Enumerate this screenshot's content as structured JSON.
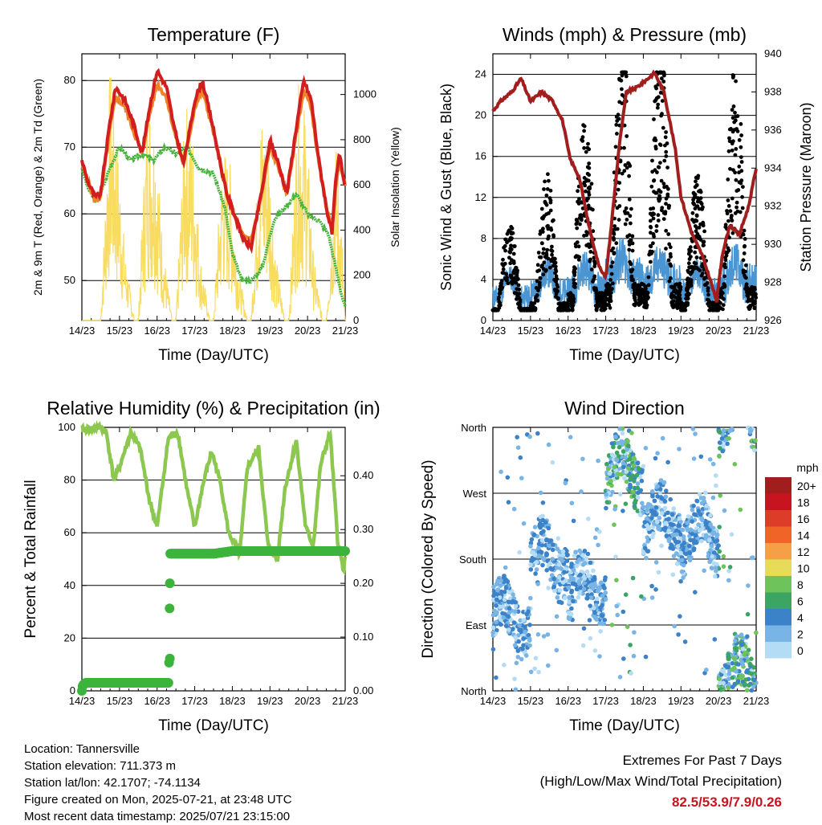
{
  "colors": {
    "temp_red": "#d21e1e",
    "temp_orange": "#f08228",
    "dewpoint_green": "#46b43c",
    "solar_yellow": "#f8dc60",
    "wind_blue": "#4b96d2",
    "gust_black": "#000000",
    "pressure_maroon": "#a01e1e",
    "rh_green": "#8cc850",
    "precip_green": "#3cb43c"
  },
  "shared_time_ticks": [
    "14/23",
    "15/23",
    "16/23",
    "17/23",
    "18/23",
    "19/23",
    "20/23",
    "21/23"
  ],
  "chart_data": [
    {
      "id": "temperature",
      "type": "line",
      "title": "Temperature (F)",
      "xlabel": "Time (Day/UTC)",
      "ylabel": "2m & 9m T (Red, Orange) & 2m Td (Green)",
      "ylabel_right": "Solar Insolation (Yellow)",
      "x_ticks": [
        "14/23",
        "15/23",
        "16/23",
        "17/23",
        "18/23",
        "19/23",
        "20/23",
        "21/23"
      ],
      "ylim": [
        44,
        84
      ],
      "yticks": [
        50,
        60,
        70,
        80
      ],
      "ylim_right": [
        0,
        1180
      ],
      "yticks_right": [
        0,
        200,
        400,
        600,
        800,
        1000
      ],
      "series": [
        {
          "name": "2m T",
          "color": "#d21e1e",
          "x": [
            0,
            0.15,
            0.35,
            0.5,
            0.75,
            0.9,
            1.15,
            1.4,
            1.6,
            1.8,
            2.0,
            2.25,
            2.45,
            2.7,
            2.85,
            3.0,
            3.2,
            3.45,
            3.7,
            3.85,
            4.05,
            4.3,
            4.5,
            4.8,
            5.0,
            5.2,
            5.45,
            5.7,
            5.9,
            6.1,
            6.3,
            6.5,
            6.65,
            6.75,
            6.85,
            7.0
          ],
          "values": [
            68,
            65,
            62.5,
            63,
            74,
            79,
            77,
            73,
            69,
            76,
            81.5,
            79,
            73,
            67.5,
            72,
            77,
            80,
            74,
            67,
            63,
            60,
            56,
            55,
            64,
            71,
            68,
            63,
            73,
            80,
            77,
            68,
            61,
            57,
            65,
            69,
            64
          ]
        },
        {
          "name": "9m T",
          "color": "#f08228",
          "x": [
            0,
            0.15,
            0.35,
            0.5,
            0.75,
            0.9,
            1.15,
            1.4,
            1.6,
            1.8,
            2.0,
            2.25,
            2.45,
            2.7,
            2.85,
            3.0,
            3.2,
            3.45,
            3.7,
            3.85,
            4.05,
            4.3,
            4.5,
            4.8,
            5.0,
            5.2,
            5.45,
            5.7,
            5.9,
            6.1,
            6.3,
            6.5,
            6.65,
            6.75,
            6.85,
            7.0
          ],
          "values": [
            67.5,
            65,
            62,
            62.5,
            73,
            77.5,
            76,
            72,
            69,
            75,
            79.5,
            77.5,
            72.5,
            67.5,
            71.5,
            76,
            78.5,
            73.5,
            67,
            63,
            60,
            56.5,
            56,
            63.5,
            70,
            67.5,
            63,
            72,
            78.5,
            76,
            67.5,
            61,
            57.5,
            64,
            68,
            64
          ]
        },
        {
          "name": "2m Td",
          "color": "#46b43c",
          "x": [
            0,
            0.15,
            0.35,
            0.5,
            0.75,
            1.0,
            1.3,
            1.6,
            1.9,
            2.2,
            2.5,
            2.8,
            3.1,
            3.5,
            3.8,
            4.0,
            4.25,
            4.5,
            4.8,
            5.1,
            5.4,
            5.7,
            6.0,
            6.3,
            6.55,
            6.75,
            6.9,
            7.0
          ],
          "values": [
            67,
            64,
            62,
            63,
            67,
            70,
            68,
            69,
            68,
            70,
            69,
            70,
            67,
            66,
            61,
            54,
            50,
            50,
            52,
            59,
            61,
            63,
            60,
            59,
            57,
            52,
            48,
            46
          ]
        },
        {
          "name": "Solar Insolation",
          "color": "#f8dc60",
          "axis": "right",
          "x": [
            0,
            0.3,
            0.5,
            0.6,
            0.75,
            0.95,
            1.15,
            1.4,
            1.5,
            1.6,
            1.75,
            1.95,
            2.15,
            2.4,
            2.5,
            2.6,
            2.75,
            2.95,
            3.15,
            3.4,
            3.5,
            3.6,
            3.75,
            3.95,
            4.15,
            4.4,
            4.5,
            4.6,
            4.75,
            4.95,
            5.15,
            5.4,
            5.5,
            5.6,
            5.75,
            5.95,
            6.15,
            6.4,
            6.5,
            6.6,
            6.75,
            6.9,
            7.0
          ],
          "values": [
            0,
            0,
            0,
            450,
            1150,
            800,
            300,
            0,
            0,
            450,
            1050,
            900,
            350,
            0,
            0,
            400,
            1000,
            850,
            300,
            0,
            0,
            350,
            800,
            700,
            250,
            0,
            0,
            400,
            950,
            850,
            300,
            0,
            0,
            400,
            1050,
            950,
            300,
            0,
            0,
            350,
            800,
            450,
            0
          ]
        }
      ]
    },
    {
      "id": "winds_pressure",
      "type": "scatter",
      "title": "Winds (mph) & Pressure (mb)",
      "xlabel": "Time (Day/UTC)",
      "ylabel": "Sonic Wind & Gust (Blue, Black)",
      "ylabel_right": "Station Pressure (Maroon)",
      "x_ticks": [
        "14/23",
        "15/23",
        "16/23",
        "17/23",
        "18/23",
        "19/23",
        "20/23",
        "21/23"
      ],
      "ylim": [
        0,
        26
      ],
      "yticks": [
        0,
        4,
        8,
        12,
        16,
        20,
        24
      ],
      "ylim_right": [
        926,
        940
      ],
      "yticks_right": [
        926,
        928,
        930,
        932,
        934,
        936,
        938,
        940
      ],
      "series": [
        {
          "name": "Sonic Wind",
          "color": "#4b96d2",
          "mean_by_day": [
            2.5,
            3,
            3.5,
            4.5,
            4,
            3,
            4
          ],
          "peak": 8
        },
        {
          "name": "Gust",
          "color": "#000000",
          "mean_by_day": [
            4,
            6,
            9,
            12,
            12,
            6,
            11
          ],
          "peak": 24.2
        },
        {
          "name": "Station Pressure",
          "color": "#a01e1e",
          "axis": "right",
          "x": [
            0,
            0.2,
            0.5,
            0.75,
            1.0,
            1.3,
            1.6,
            1.85,
            2.05,
            2.3,
            2.55,
            2.8,
            3.0,
            3.15,
            3.35,
            3.55,
            3.8,
            4.0,
            4.3,
            4.55,
            4.85,
            5.0,
            5.3,
            5.55,
            5.8,
            5.95,
            6.1,
            6.3,
            6.55,
            6.8,
            7.0
          ],
          "values": [
            937,
            937.5,
            938,
            938.7,
            937.5,
            938,
            937.5,
            936.5,
            934.5,
            933.5,
            931,
            929,
            928.2,
            931,
            935,
            938,
            938.2,
            938.5,
            939,
            938,
            935,
            932.5,
            930.5,
            929.5,
            928,
            927,
            929.5,
            931,
            930.5,
            932,
            934
          ]
        }
      ]
    },
    {
      "id": "rh_precip",
      "type": "line",
      "title": "Relative Humidity (%) & Precipitation (in)",
      "xlabel": "Time (Day/UTC)",
      "ylabel": "Percent & Total Rainfall",
      "x_ticks": [
        "14/23",
        "15/23",
        "16/23",
        "17/23",
        "18/23",
        "19/23",
        "20/23",
        "21/23"
      ],
      "ylim": [
        0,
        100
      ],
      "yticks": [
        0,
        20,
        40,
        60,
        80,
        100
      ],
      "ylim_right": [
        0,
        0.49
      ],
      "yticks_right": [
        "0.00",
        "0.10",
        "0.20",
        "0.30",
        "0.40"
      ],
      "series": [
        {
          "name": "Relative Humidity",
          "color": "#8cc850",
          "x": [
            0,
            0.5,
            0.65,
            0.85,
            1.0,
            1.3,
            1.55,
            1.8,
            2.0,
            2.3,
            2.55,
            2.8,
            3.0,
            3.2,
            3.45,
            3.7,
            3.9,
            4.2,
            4.4,
            4.7,
            4.95,
            5.2,
            5.4,
            5.7,
            5.95,
            6.15,
            6.35,
            6.6,
            6.8,
            6.95,
            7.0
          ],
          "values": [
            99,
            100,
            98,
            80,
            85,
            98,
            92,
            72,
            62,
            96,
            98,
            76,
            62,
            77,
            91,
            78,
            60,
            52,
            85,
            92,
            55,
            50,
            77,
            95,
            62,
            55,
            86,
            98,
            57,
            46,
            50
          ]
        },
        {
          "name": "Total Precipitation",
          "color": "#3cb43c",
          "axis": "right",
          "x": [
            0,
            0.02,
            0.1,
            2.3,
            2.32,
            2.34,
            2.35,
            3.5,
            4.0,
            7.0
          ],
          "values": [
            0,
            0.01,
            0.015,
            0.015,
            0.06,
            0.2,
            0.255,
            0.255,
            0.26,
            0.26
          ]
        }
      ]
    },
    {
      "id": "wind_direction",
      "type": "scatter",
      "title": "Wind Direction",
      "xlabel": "Time (Day/UTC)",
      "ylabel": "Direction (Colored By Speed)",
      "x_ticks": [
        "14/23",
        "15/23",
        "16/23",
        "17/23",
        "18/23",
        "19/23",
        "20/23",
        "21/23"
      ],
      "y_ticks": [
        "North",
        "East",
        "South",
        "West",
        "North"
      ],
      "ylim": [
        0,
        360
      ],
      "legend": {
        "title": "mph",
        "labels": [
          "20+",
          "18",
          "16",
          "14",
          "12",
          "10",
          "8",
          "6",
          "4",
          "2",
          "0"
        ],
        "colors": [
          "#a01e1e",
          "#c8141e",
          "#dc3c28",
          "#f06428",
          "#f5a046",
          "#e6dc5a",
          "#6ec35a",
          "#3ca564",
          "#3c82c8",
          "#78b4e6",
          "#b4dcf5"
        ]
      },
      "series": [
        {
          "name": "Direction by day (deg)",
          "dominant_direction_by_day": [
            100,
            180,
            140,
            300,
            230,
            210,
            20
          ]
        }
      ]
    }
  ],
  "info": {
    "location": "Location: Tannersville",
    "elevation": "Station elevation: 711.373 m",
    "latlon": "Station lat/lon: 42.1707; -74.1134",
    "created": "Figure created on Mon, 2025-07-21, at 23:48 UTC",
    "timestamp": "Most recent data timestamp: 2025/07/21 23:15:00"
  },
  "extremes": {
    "title": "Extremes For Past 7 Days",
    "subtitle": "(High/Low/Max Wind/Total Precipitation)",
    "values": "82.5/53.9/7.9/0.26"
  }
}
